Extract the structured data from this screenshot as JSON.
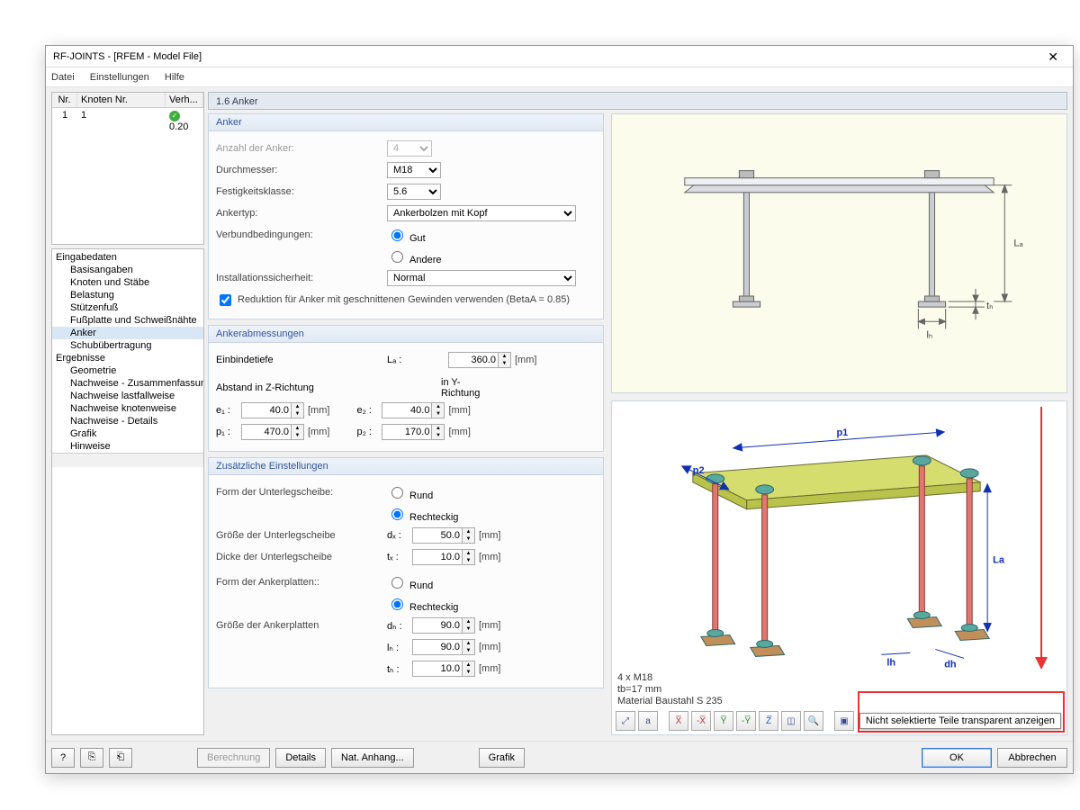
{
  "window": {
    "title": "RF-JOINTS - [RFEM - Model File]"
  },
  "menu": {
    "file": "Datei",
    "settings": "Einstellungen",
    "help": "Hilfe"
  },
  "gridHead": {
    "nr": "Nr.",
    "knoten": "Knoten Nr.",
    "verh": "Verh..."
  },
  "gridRow": {
    "nr": "1",
    "knoten": "1",
    "verh": "0.20"
  },
  "tree": {
    "input": "Eingabedaten",
    "items": [
      "Basisangaben",
      "Knoten und Stäbe",
      "Belastung",
      "Stützenfuß",
      "Fußplatte und Schweißnähte",
      "Anker",
      "Schubübertragung"
    ],
    "results": "Ergebnisse",
    "ritems": [
      "Geometrie",
      "Nachweise - Zusammenfassung",
      "Nachweise lastfallweise",
      "Nachweise knotenweise",
      "Nachweise - Details",
      "Grafik",
      "Hinweise"
    ]
  },
  "pageTitle": "1.6 Anker",
  "anker": {
    "head": "Anker",
    "anzahl_lbl": "Anzahl der Anker:",
    "anzahl": "4",
    "durchmesser_lbl": "Durchmesser:",
    "durchmesser": "M18",
    "festigkeit_lbl": "Festigkeitsklasse:",
    "festigkeit": "5.6",
    "typ_lbl": "Ankertyp:",
    "typ": "Ankerbolzen mit Kopf",
    "verb_lbl": "Verbundbedingungen:",
    "verb_gut": "Gut",
    "verb_andere": "Andere",
    "inst_lbl": "Installationssicherheit:",
    "inst": "Normal",
    "reduktion": "Reduktion für Anker mit geschnittenen Gewinden verwenden (BetaA = 0.85)"
  },
  "abm": {
    "head": "Ankerabmessungen",
    "einbinde": "Einbindetiefe",
    "La_sym": "Lₐ :",
    "La_val": "360.0",
    "abst_z": "Abstand in Z-Richtung",
    "in_y": "in Y-Richtung",
    "e1_sym": "e₁ :",
    "e1_val": "40.0",
    "e2_sym": "e₂ :",
    "e2_val": "40.0",
    "p1_sym": "p₁ :",
    "p1_val": "470.0",
    "p2_sym": "p₂ :",
    "p2_val": "170.0",
    "mm": "[mm]"
  },
  "zus": {
    "head": "Zusätzliche Einstellungen",
    "form_us": "Form der Unterlegscheibe:",
    "rund": "Rund",
    "recht": "Rechteckig",
    "gr_us": "Größe der Unterlegscheibe",
    "dw_sym": "dₓ :",
    "dw_val": "50.0",
    "dk_us": "Dicke der Unterlegscheibe",
    "tw_sym": "tₓ :",
    "tw_val": "10.0",
    "form_ap": "Form der Ankerplatten::",
    "gr_ap": "Größe der Ankerplatten",
    "dh_sym": "dₕ :",
    "dh_val": "90.0",
    "lh_sym": "lₕ :",
    "lh_val": "90.0",
    "th_sym": "tₕ :",
    "th_val": "10.0"
  },
  "preview2": {
    "line1": "4 x M18",
    "line2": "tb=17 mm",
    "line3": "Material Baustahl S 235",
    "dims": {
      "p1": "p1",
      "p2": "p2",
      "La": "La",
      "lh": "lh",
      "dh": "dh"
    }
  },
  "tooltip": "Nicht selektierte Teile transparent anzeigen",
  "footer": {
    "berechnung": "Berechnung",
    "details": "Details",
    "nat": "Nat. Anhang...",
    "grafik": "Grafik",
    "ok": "OK",
    "cancel": "Abbrechen"
  },
  "colors": {
    "plate": "#b9c24a",
    "plate_top": "#d4dd6e",
    "bolt": "#e0786f",
    "bolt_cap": "#5aa7a0",
    "foot": "#c28f5a",
    "dim": "#1030b0"
  }
}
